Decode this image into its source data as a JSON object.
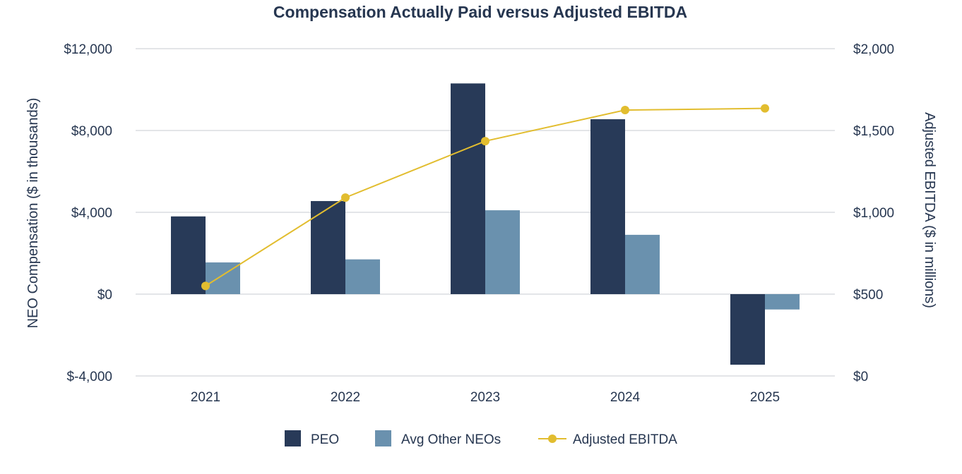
{
  "chart_data": {
    "type": "bar",
    "title": "Compensation Actually Paid versus Adjusted EBITDA",
    "categories": [
      "2021",
      "2022",
      "2023",
      "2024",
      "2025"
    ],
    "series": [
      {
        "name": "PEO",
        "kind": "bar",
        "axis": "left",
        "color": "#283a58",
        "values": [
          3800,
          4550,
          10300,
          8550,
          -3450
        ]
      },
      {
        "name": "Avg Other NEOs",
        "kind": "bar",
        "axis": "left",
        "color": "#6a91ae",
        "values": [
          1550,
          1700,
          4100,
          2900,
          -750
        ]
      },
      {
        "name": "Adjusted EBITDA",
        "kind": "line",
        "axis": "right",
        "color": "#e2bd2f",
        "values": [
          550,
          1090,
          1435,
          1625,
          1635
        ]
      }
    ],
    "ylabel_left": "NEO Compensation ($ in thousands)",
    "ylabel_right": "Adjusted EBITDA ($ in millions)",
    "ylim_left": [
      -4000,
      12000
    ],
    "ylim_right": [
      0,
      2000
    ],
    "yticks_left": [
      {
        "value": -4000,
        "label": "$-4,000"
      },
      {
        "value": 0,
        "label": "$0"
      },
      {
        "value": 4000,
        "label": "$4,000"
      },
      {
        "value": 8000,
        "label": "$8,000"
      },
      {
        "value": 12000,
        "label": "$12,000"
      }
    ],
    "yticks_right": [
      {
        "value": 0,
        "label": "$0"
      },
      {
        "value": 500,
        "label": "$500"
      },
      {
        "value": 1000,
        "label": "$1,000"
      },
      {
        "value": 1500,
        "label": "$1,500"
      },
      {
        "value": 2000,
        "label": "$2,000"
      }
    ],
    "grid": true,
    "legend_position": "bottom-center"
  }
}
